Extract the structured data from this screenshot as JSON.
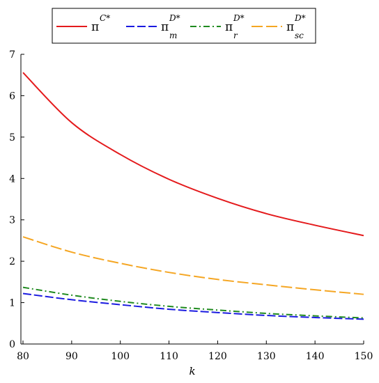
{
  "chart_data": {
    "type": "line",
    "title": "",
    "xlabel": "k",
    "ylabel": "",
    "xlim": [
      80,
      150
    ],
    "ylim": [
      0,
      7
    ],
    "xticks": [
      80,
      90,
      100,
      110,
      120,
      130,
      140,
      150
    ],
    "yticks": [
      0,
      1,
      2,
      3,
      4,
      5,
      6,
      7
    ],
    "grid": false,
    "legend_position": "top-center",
    "x": [
      80,
      90,
      100,
      110,
      120,
      130,
      140,
      150
    ],
    "series": [
      {
        "name": "π^{C*}",
        "symbol": "π",
        "sup": "C*",
        "sub": "",
        "color": "#e41a1c",
        "dash": "solid",
        "values": [
          6.56,
          5.35,
          4.58,
          3.98,
          3.52,
          3.15,
          2.87,
          2.62
        ]
      },
      {
        "name": "π_m^{D*}",
        "symbol": "π",
        "sup": "D*",
        "sub": "m",
        "color": "#1a1ae0",
        "dash": "dash",
        "values": [
          1.22,
          1.07,
          0.95,
          0.84,
          0.76,
          0.69,
          0.64,
          0.6
        ]
      },
      {
        "name": "π_r^{D*}",
        "symbol": "π",
        "sup": "D*",
        "sub": "r",
        "color": "#1f8a1f",
        "dash": "dashdot",
        "values": [
          1.37,
          1.18,
          1.03,
          0.91,
          0.82,
          0.74,
          0.68,
          0.63
        ]
      },
      {
        "name": "π_sc^{D*}",
        "symbol": "π",
        "sup": "D*",
        "sub": "sc",
        "color": "#f5a623",
        "dash": "longdash",
        "values": [
          2.59,
          2.22,
          1.95,
          1.73,
          1.56,
          1.43,
          1.31,
          1.2
        ]
      }
    ]
  }
}
